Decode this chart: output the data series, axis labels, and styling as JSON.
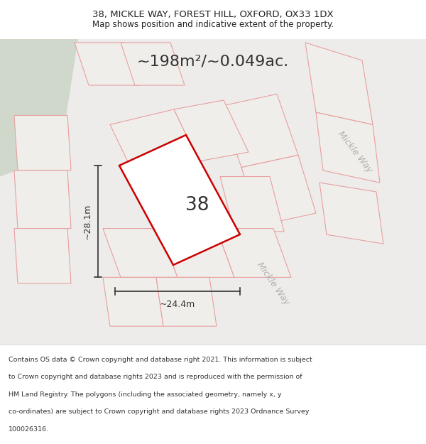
{
  "title_line1": "38, MICKLE WAY, FOREST HILL, OXFORD, OX33 1DX",
  "title_line2": "Map shows position and indicative extent of the property.",
  "area_text": "~198m²/~0.049ac.",
  "property_number": "38",
  "dim_width": "~24.4m",
  "dim_height": "~28.1m",
  "road_label1": "Mickle Way",
  "road_label2": "Mickle Way",
  "footer_lines": [
    "Contains OS data © Crown copyright and database right 2021. This information is subject",
    "to Crown copyright and database rights 2023 and is reproduced with the permission of",
    "HM Land Registry. The polygons (including the associated geometry, namely x, y",
    "co-ordinates) are subject to Crown copyright and database rights 2023 Ordnance Survey",
    "100026316."
  ],
  "map_bg": "#edecea",
  "plot_outline_color": "#e8a0a0",
  "highlight_outline_color": "#cc0000",
  "green_area_color": "#d0d8cc",
  "title_bg": "#ffffff",
  "dim_line_color": "#333333"
}
